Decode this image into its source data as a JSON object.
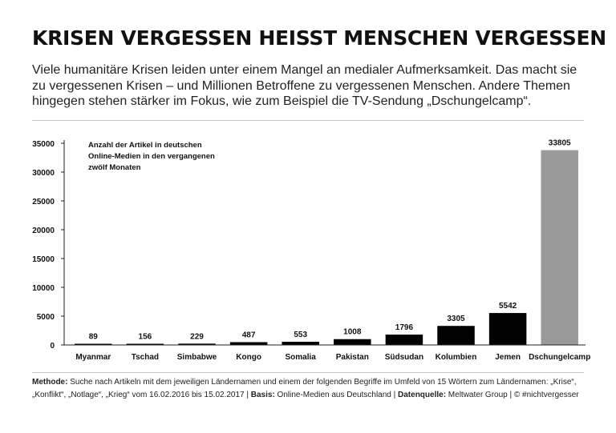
{
  "title": "KRISEN VERGESSEN HEISST MENSCHEN VERGESSEN",
  "intro": "Viele humanitäre Krisen leiden unter einem Mangel an medialer Aufmerksamkeit. Das macht sie zu vergessenen Krisen – und Millionen Betroffene zu vergessenen Menschen. Andere Themen hingegen stehen stärker im Fokus, wie zum Beispiel die TV-Sendung „Dschungelcamp“.",
  "chart_data": {
    "type": "bar",
    "annotation": [
      "Anzahl der Artikel in deutschen",
      "Online-Medien in den vergangenen",
      "zwölf Monaten"
    ],
    "categories": [
      "Myanmar",
      "Tschad",
      "Simbabwe",
      "Kongo",
      "Somalia",
      "Pakistan",
      "Südsudan",
      "Kolumbien",
      "Jemen",
      "Dschungelcamp"
    ],
    "values": [
      89,
      156,
      229,
      487,
      553,
      1008,
      1796,
      3305,
      5542,
      33805
    ],
    "y_ticks": [
      0,
      5000,
      10000,
      15000,
      20000,
      25000,
      30000,
      35000
    ],
    "ylim": [
      0,
      35000
    ],
    "colors": {
      "crisis": "#000000",
      "highlight": "#9a9a9a"
    },
    "highlight_category": "Dschungelcamp"
  },
  "footer": {
    "methode_label": "Methode:",
    "methode_text": " Suche nach Artikeln mit dem jeweiligen Ländernamen und einem der folgenden Begriffe im Umfeld von 15 Wörtern zum Ländernamen: „Krise“, „Konflikt“, „Notlage“, „Krieg“ vom 16.02.2016 bis 15.02.2017 | ",
    "basis_label": "Basis:",
    "basis_text": " Online-Medien aus Deutschland | ",
    "quelle_label": "Datenquelle:",
    "quelle_text": " Meltwater Group | © #nichtvergesser"
  }
}
